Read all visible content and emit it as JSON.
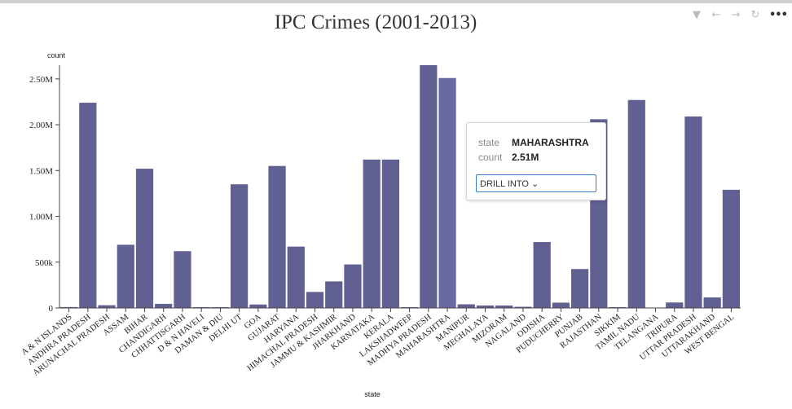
{
  "toolbar": {
    "icons": [
      "filter-icon",
      "back-arrow-icon",
      "forward-arrow-icon",
      "refresh-icon",
      "more-icon"
    ]
  },
  "tooltip": {
    "key1": "state",
    "val1": "MAHARASHTRA",
    "key2": "count",
    "val2": "2.51M",
    "drill_label": "DRILL INTO ⌄"
  },
  "colors": {
    "bar": "#606093",
    "bar_highlight": "#6a6aa3",
    "axis": "#444444"
  },
  "chart_data": {
    "type": "bar",
    "title": "IPC Crimes (2001-2013)",
    "xlabel": "state",
    "ylabel": "count",
    "ylim": [
      0,
      2650000
    ],
    "yticks": [
      0,
      500000,
      1000000,
      1500000,
      2000000,
      2500000
    ],
    "ytick_labels": [
      "0",
      "500k",
      "1.00M",
      "1.50M",
      "2.00M",
      "2.50M"
    ],
    "highlighted": "MAHARASHTRA",
    "categories": [
      "A & N ISLANDS",
      "ANDHRA PRADESH",
      "ARUNACHAL PRADESH",
      "ASSAM",
      "BIHAR",
      "CHANDIGARH",
      "CHHATTISGARH",
      "D & N HAVELI",
      "DAMAN & DIU",
      "DELHI UT",
      "GOA",
      "GUJARAT",
      "HARYANA",
      "HIMACHAL PRADESH",
      "JAMMU & KASHMIR",
      "JHARKHAND",
      "KARNATAKA",
      "KERALA",
      "LAKSHADWEEP",
      "MADHYA PRADESH",
      "MAHARASHTRA",
      "MANIPUR",
      "MEGHALAYA",
      "MIZORAM",
      "NAGALAND",
      "ODISHA",
      "PUDUCHERRY",
      "PUNJAB",
      "RAJASTHAN",
      "SIKKIM",
      "TAMIL NADU",
      "TELANGANA",
      "TRIPURA",
      "UTTAR PRADESH",
      "UTTARAKHAND",
      "WEST BENGAL"
    ],
    "values": [
      10000,
      2240000,
      30000,
      690000,
      1520000,
      45000,
      620000,
      4000,
      3000,
      1350000,
      38000,
      1550000,
      670000,
      175000,
      290000,
      475000,
      1620000,
      1620000,
      500,
      2650000,
      2510000,
      40000,
      27000,
      27000,
      13000,
      720000,
      58000,
      425000,
      2060000,
      8000,
      2270000,
      0,
      60000,
      2090000,
      115000,
      1290000
    ]
  }
}
